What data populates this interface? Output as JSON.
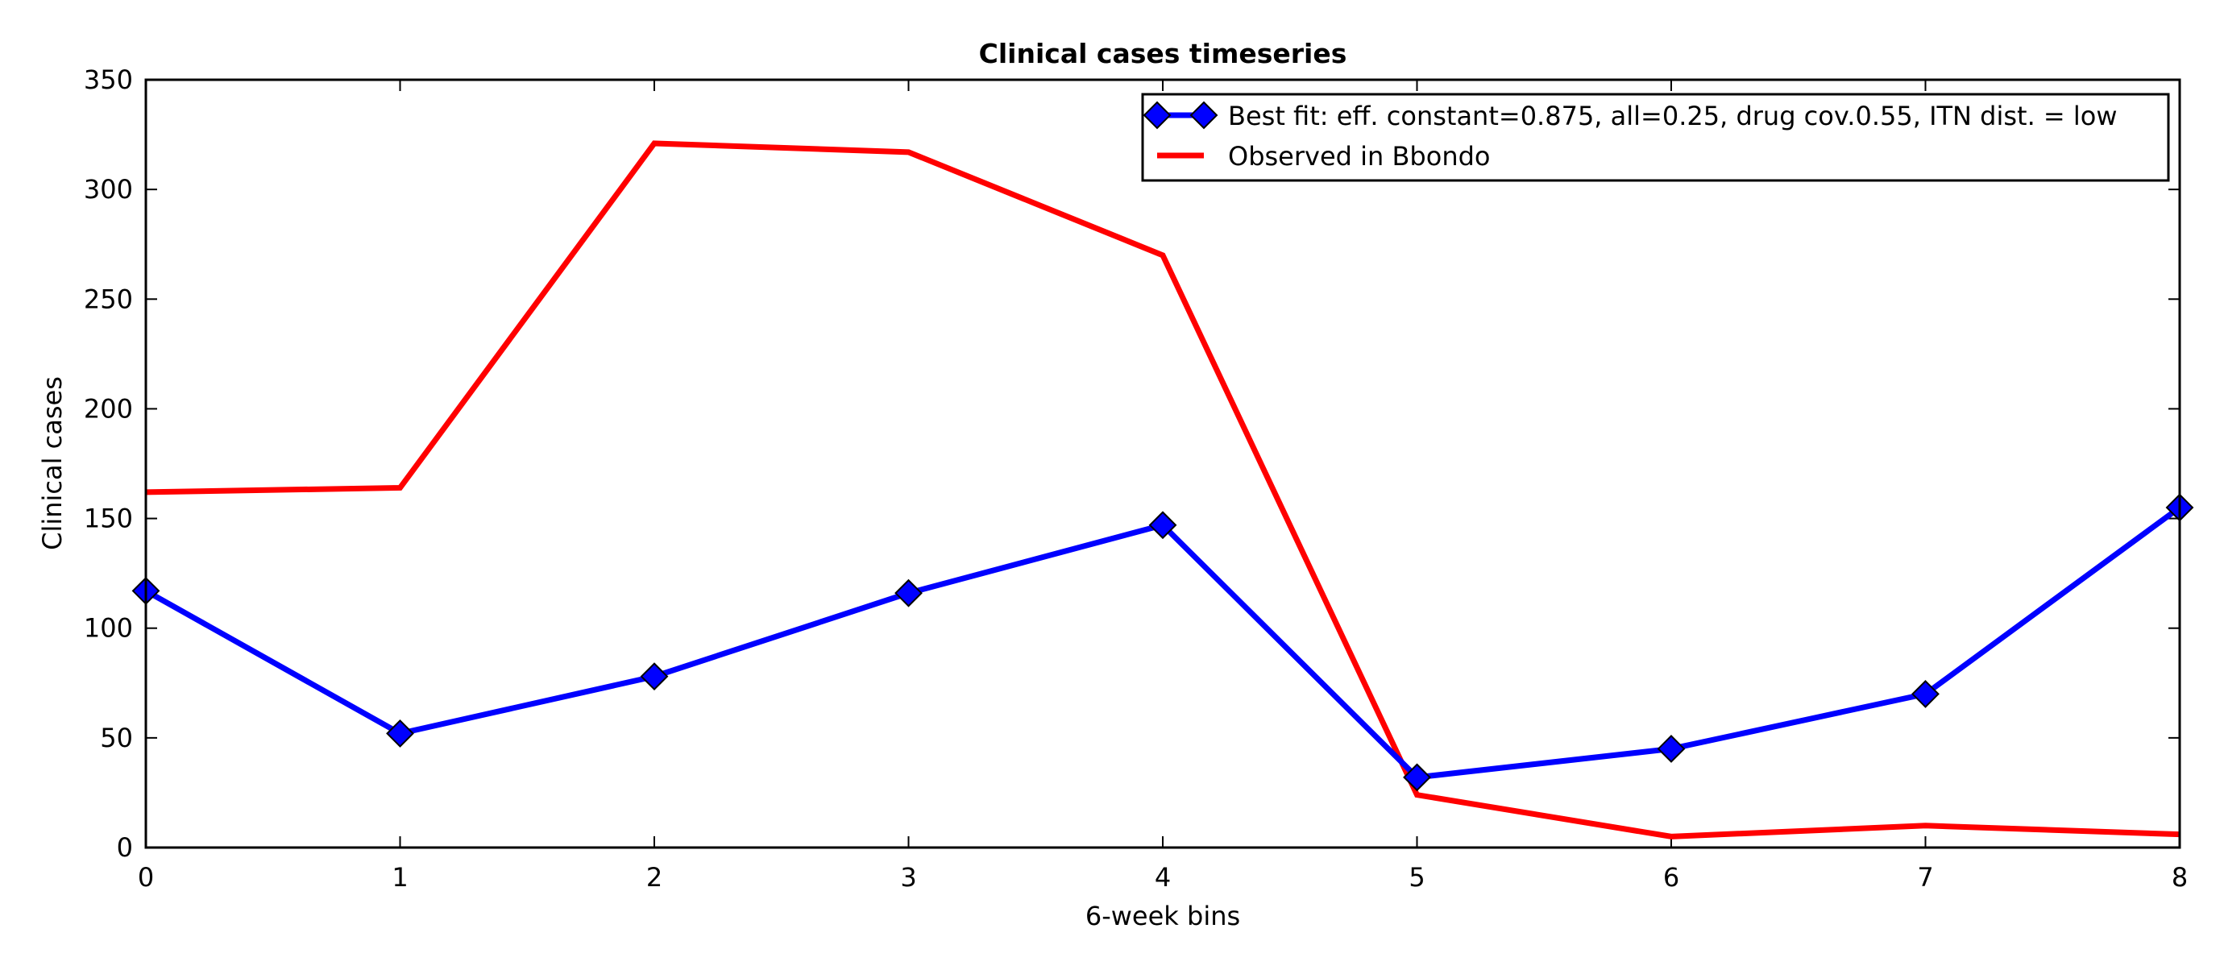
{
  "chart_data": {
    "type": "line",
    "title": "Clinical cases timeseries",
    "xlabel": "6-week bins",
    "ylabel": "Clinical cases",
    "xlim": [
      0,
      8
    ],
    "ylim": [
      0,
      350
    ],
    "x_ticks": [
      "0",
      "1",
      "2",
      "3",
      "4",
      "5",
      "6",
      "7",
      "8"
    ],
    "y_ticks": [
      "0",
      "50",
      "100",
      "150",
      "200",
      "250",
      "300",
      "350"
    ],
    "grid": false,
    "legend_position": "top-right",
    "x": [
      0,
      1,
      2,
      3,
      4,
      5,
      6,
      7,
      8
    ],
    "series": [
      {
        "name": "Best fit: eff. constant=0.875, all=0.25, drug cov.0.55, ITN dist. = low",
        "values": [
          117,
          52,
          78,
          116,
          147,
          32,
          45,
          70,
          155
        ],
        "color": "#0000ff",
        "marker": "diamond",
        "marker_color": "#0000ff"
      },
      {
        "name": "Observed in Bbondo",
        "values": [
          162,
          164,
          321,
          317,
          270,
          24,
          5,
          10,
          6
        ],
        "color": "#ff0000",
        "marker": "none"
      }
    ]
  }
}
